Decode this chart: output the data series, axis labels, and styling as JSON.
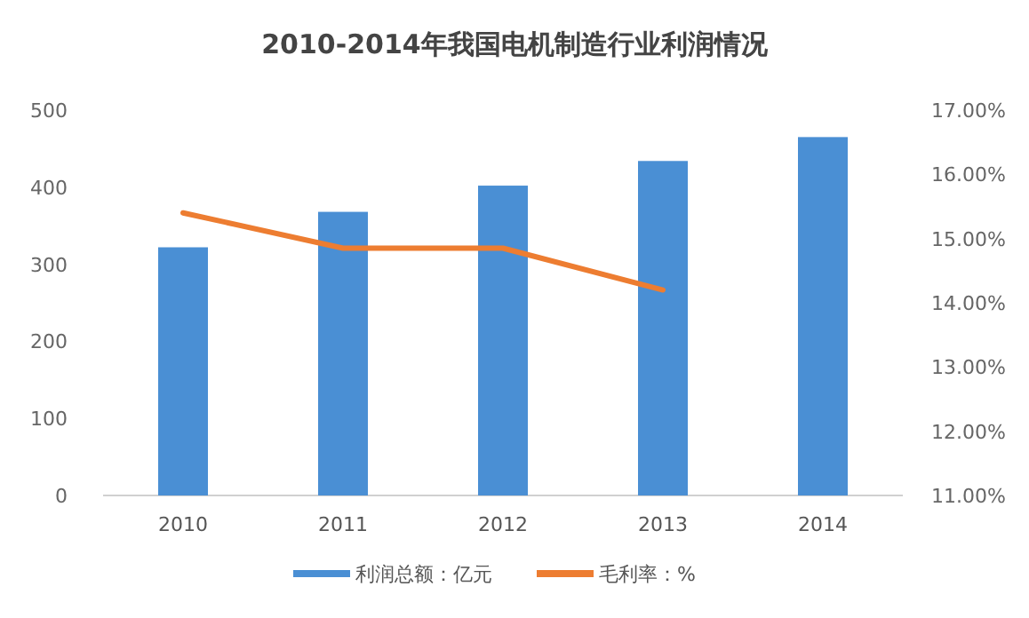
{
  "chart_data": {
    "type": "bar",
    "title": "2010-2014年我国电机制造行业利润情况",
    "categories": [
      "2010",
      "2011",
      "2012",
      "2013",
      "2014"
    ],
    "series": [
      {
        "name": "利润总额：亿元",
        "color": "#4a8fd4",
        "values": [
          322,
          368,
          402,
          434,
          465
        ]
      },
      {
        "name": "毛利率：%",
        "type": "line",
        "axis": "y2",
        "color": "#ed7d31",
        "values": [
          15.4,
          14.85,
          14.85,
          14.2,
          null
        ]
      }
    ],
    "ylim": [
      0,
      500
    ],
    "yticks": [
      0,
      100,
      200,
      300,
      400,
      500
    ],
    "y2lim": [
      11,
      17
    ],
    "y2ticks": [
      {
        "value": 11,
        "label": "11.00%"
      },
      {
        "value": 12,
        "label": "12.00%"
      },
      {
        "value": 13,
        "label": "13.00%"
      },
      {
        "value": 14,
        "label": "14.00%"
      },
      {
        "value": 15,
        "label": "15.00%"
      },
      {
        "value": 16,
        "label": "16.00%"
      },
      {
        "value": 17,
        "label": "17.00%"
      }
    ],
    "grid": false,
    "legend": "bottom"
  }
}
